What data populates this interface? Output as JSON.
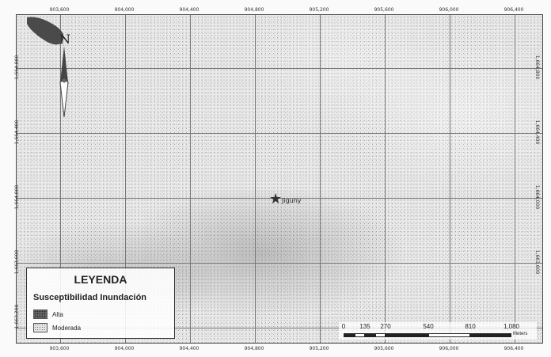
{
  "map": {
    "ticks_x_top": [
      "903,600",
      "904,000",
      "904,400",
      "904,800",
      "905,200",
      "905,600",
      "906,000",
      "906,400"
    ],
    "ticks_x_bottom": [
      "903,600",
      "904,000",
      "904,400",
      "904,800",
      "905,200",
      "905,600",
      "906,000",
      "906,400"
    ],
    "ticks_y_left": [
      "1,664,800",
      "1,664,400",
      "1,664,000",
      "1,663,600",
      "1,663,200"
    ],
    "ticks_y_right": [
      "1,664,800",
      "1,664,400",
      "1,664,000",
      "1,663,600"
    ],
    "north_label": "N",
    "place_name": "Jiguny",
    "place_icon": "star-icon"
  },
  "legend": {
    "title": "LEYENDA",
    "subtitle": "Susceptibilidad Inundación",
    "items": [
      {
        "label": "Alta",
        "color": "#6a6a6a"
      },
      {
        "label": "Moderada",
        "color": "#e4e4e4"
      }
    ]
  },
  "scale": {
    "labels": [
      "0",
      "135",
      "270",
      "540",
      "810",
      "1,080"
    ],
    "unit": "Meters"
  }
}
